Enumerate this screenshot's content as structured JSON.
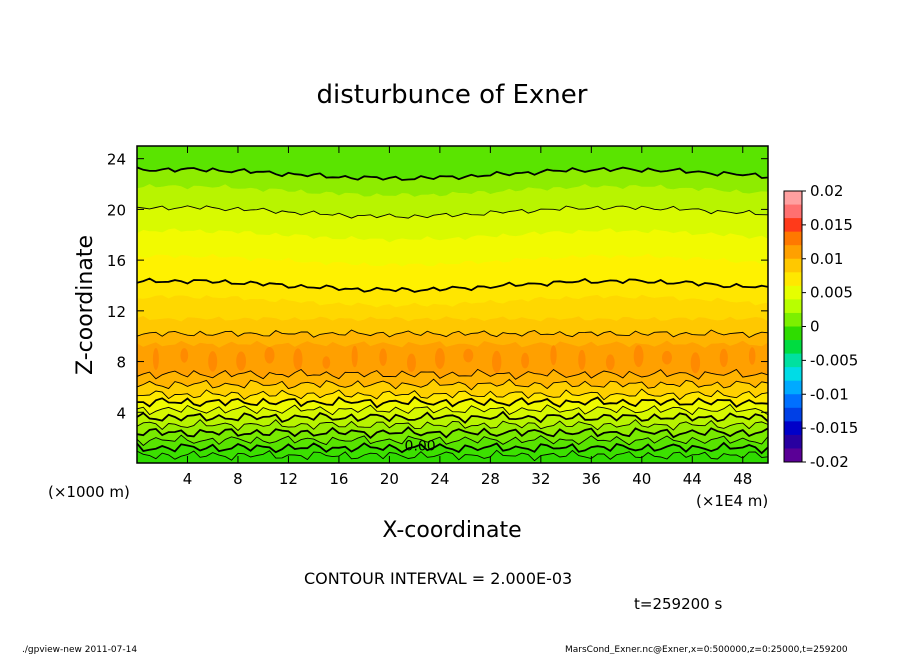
{
  "chart_data": {
    "type": "contour",
    "title": "disturbunce of Exner",
    "xlabel": "X-coordinate",
    "ylabel": "Z-coordinate",
    "x_unit": "(×1E4 m)",
    "y_unit": "(×1000 m)",
    "xlim": [
      0,
      50
    ],
    "ylim": [
      0,
      25
    ],
    "x_ticks": [
      4,
      8,
      12,
      16,
      20,
      24,
      28,
      32,
      36,
      40,
      44,
      48
    ],
    "y_ticks": [
      4,
      8,
      12,
      16,
      20,
      24
    ],
    "contour_interval_text": "CONTOUR INTERVAL = 2.000E-03",
    "contour_label": "0.00",
    "time_text": "t=259200 s",
    "colorbar": {
      "ticks": [
        "0.02",
        "0.015",
        "0.01",
        "0.005",
        "0",
        "-0.005",
        "-0.01",
        "-0.015",
        "-0.02"
      ],
      "min": -0.02,
      "max": 0.02,
      "colors": [
        "#ffa0a0",
        "#ff7070",
        "#ff3a1a",
        "#ff7800",
        "#ffa000",
        "#ffc800",
        "#ffe800",
        "#e6ff00",
        "#b8ff00",
        "#7cf000",
        "#2fdc00",
        "#00dc40",
        "#00e0a0",
        "#00dce6",
        "#00aaff",
        "#0070ff",
        "#0040e6",
        "#0000c8",
        "#2800a0",
        "#5a0096"
      ]
    },
    "bands": [
      {
        "z": [
          0,
          0.6
        ],
        "value": -0.003,
        "color": "#2fdc00"
      },
      {
        "z": [
          0.6,
          1.2
        ],
        "value": -0.001,
        "color": "#3ce000"
      },
      {
        "z": [
          1.2,
          1.8
        ],
        "value": 0.0,
        "color": "#58e400"
      },
      {
        "z": [
          1.8,
          2.4
        ],
        "value": 0.001,
        "color": "#78ea00"
      },
      {
        "z": [
          2.4,
          3.0
        ],
        "value": 0.002,
        "color": "#98ee00"
      },
      {
        "z": [
          3.0,
          3.6
        ],
        "value": 0.003,
        "color": "#b8f400"
      },
      {
        "z": [
          3.6,
          4.2
        ],
        "value": 0.004,
        "color": "#d6f800"
      },
      {
        "z": [
          4.2,
          4.8
        ],
        "value": 0.005,
        "color": "#eefa00"
      },
      {
        "z": [
          4.8,
          5.4
        ],
        "value": 0.006,
        "color": "#ffe800"
      },
      {
        "z": [
          5.4,
          6.2
        ],
        "value": 0.007,
        "color": "#ffd000"
      },
      {
        "z": [
          6.2,
          7.0
        ],
        "value": 0.008,
        "color": "#ffb400"
      },
      {
        "z": [
          7.0,
          9.4
        ],
        "value": 0.009,
        "color": "#ffa000"
      },
      {
        "z": [
          9.4,
          10.2
        ],
        "value": 0.009,
        "color": "#ffb400"
      },
      {
        "z": [
          10.2,
          11.4
        ],
        "value": 0.008,
        "color": "#ffc800"
      },
      {
        "z": [
          11.4,
          12.8
        ],
        "value": 0.007,
        "color": "#ffd800"
      },
      {
        "z": [
          12.8,
          14.0
        ],
        "value": 0.006,
        "color": "#ffe600"
      },
      {
        "z": [
          14.0,
          16.0
        ],
        "value": 0.005,
        "color": "#fff200"
      },
      {
        "z": [
          16.0,
          18.0
        ],
        "value": 0.004,
        "color": "#f2fa00"
      },
      {
        "z": [
          18.0,
          19.8
        ],
        "value": 0.003,
        "color": "#d8fa00"
      },
      {
        "z": [
          19.8,
          21.5
        ],
        "value": 0.002,
        "color": "#b8f400"
      },
      {
        "z": [
          21.5,
          22.8
        ],
        "value": 0.001,
        "color": "#8eec00"
      },
      {
        "z": [
          22.8,
          25.0
        ],
        "value": 0.0,
        "color": "#5ae400"
      }
    ],
    "contour_levels_z": [
      0.6,
      1.2,
      1.8,
      2.4,
      3.0,
      3.6,
      4.2,
      4.8,
      5.4,
      6.2,
      7.0,
      10.2,
      14.0,
      19.8,
      22.8
    ],
    "bold_levels_z": [
      1.2,
      2.4,
      3.6,
      4.8,
      14.0,
      22.8
    ]
  },
  "footer": {
    "left": "./gpview-new   2011-07-14",
    "right": "MarsCond_Exner.nc@Exner,x=0:500000,z=0:25000,t=259200"
  }
}
